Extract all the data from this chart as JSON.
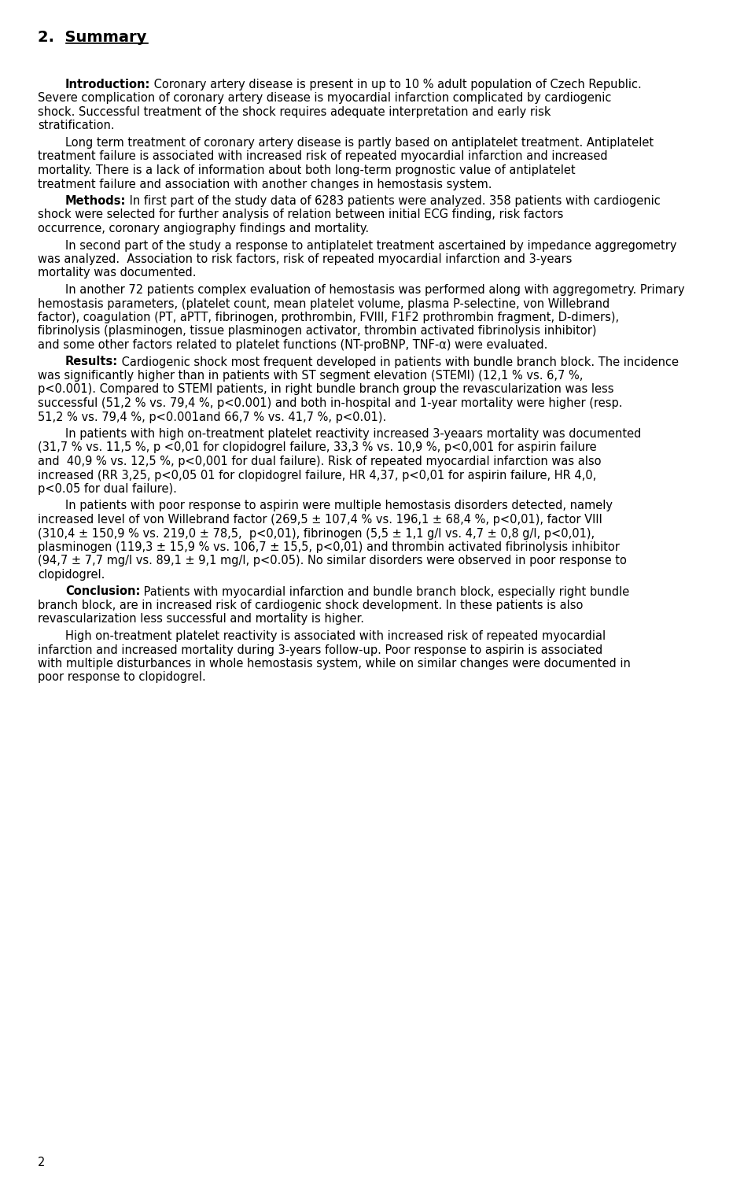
{
  "title": "2.  Summary",
  "page_number": "2",
  "background_color": "#ffffff",
  "text_color": "#000000",
  "font_size": 10.5,
  "title_font_size": 14,
  "paragraphs": [
    {
      "indent": true,
      "bold_prefix": "Introduction:",
      "text": " Coronary artery disease is present in up to 10 % adult population of Czech Republic. Severe complication of coronary artery disease is myocardial infarction complicated by cardiogenic shock. Successful treatment of the shock requires adequate interpretation and early risk stratification."
    },
    {
      "indent": true,
      "bold_prefix": "",
      "text": "Long term treatment of coronary artery disease is partly based on antiplatelet treatment. Antiplatelet treatment failure is associated with increased risk of repeated myocardial infarction and increased mortality. There is a lack of information about both long-term prognostic value of antiplatelet treatment failure and association with another changes in hemostasis system."
    },
    {
      "indent": true,
      "bold_prefix": "Methods:",
      "text": " In first part of the study data of 6283 patients were analyzed. 358 patients with cardiogenic shock were selected for further analysis of relation between initial ECG finding, risk factors occurrence, coronary angiography findings and mortality."
    },
    {
      "indent": true,
      "bold_prefix": "",
      "text": "In second part of the study a response to antiplatelet treatment ascertained by impedance aggregometry was analyzed.  Association to risk factors, risk of repeated myocardial infarction and 3-years mortality was documented."
    },
    {
      "indent": true,
      "bold_prefix": "",
      "text": "In another 72 patients complex evaluation of hemostasis was performed along with aggregometry. Primary hemostasis parameters, (platelet count, mean platelet volume, plasma P-selectine, von Willebrand factor), coagulation (PT, aPTT, fibrinogen, prothrombin, FVIII, F1F2 prothrombin fragment, D-dimers), fibrinolysis (plasminogen, tissue plasminogen activator, thrombin activated fibrinolysis inhibitor) and some other factors related to platelet functions (NT-proBNP, TNF-α) were evaluated."
    },
    {
      "indent": true,
      "bold_prefix": "Results:",
      "text": " Cardiogenic shock most frequent developed in patients with bundle branch block. The incidence was significantly higher than in patients with ST segment elevation (STEMI) (12,1 % vs. 6,7 %, p<0.001). Compared to STEMI patients, in right bundle branch group the revascularization was less successful (51,2 % vs. 79,4 %, p<0.001) and both in-hospital and 1-year mortality were higher (resp. 51,2 % vs. 79,4 %, p<0.001and 66,7 % vs. 41,7 %, p<0.01)."
    },
    {
      "indent": true,
      "bold_prefix": "",
      "text": "In patients with high on-treatment platelet reactivity increased 3-yeaars mortality was documented (31,7 % vs. 11,5 %, p <0,01 for clopidogrel failure, 33,3 % vs. 10,9 %, p<0,001 for aspirin failure and  40,9 % vs. 12,5 %, p<0,001 for dual failure). Risk of repeated myocardial infarction was also increased (RR 3,25, p<0,05 01 for clopidogrel failure, HR 4,37, p<0,01 for aspirin failure, HR 4,0, p<0.05 for dual failure)."
    },
    {
      "indent": true,
      "bold_prefix": "",
      "text": "In patients with poor response to aspirin were multiple hemostasis disorders detected, namely increased level of von Willebrand factor (269,5 ± 107,4 % vs. 196,1 ± 68,4 %, p<0,01), factor VIII (310,4 ± 150,9 % vs. 219,0 ± 78,5,  p<0,01), fibrinogen (5,5 ± 1,1 g/l vs. 4,7 ± 0,8 g/l, p<0,01), plasminogen (119,3 ± 15,9 % vs. 106,7 ± 15,5, p<0,01) and thrombin activated fibrinolysis inhibitor (94,7 ± 7,7 mg/l vs. 89,1 ± 9,1 mg/l, p<0.05). No similar disorders were observed in poor response to clopidogrel."
    },
    {
      "indent": true,
      "bold_prefix": "Conclusion:",
      "text": " Patients with myocardial infarction and bundle branch block, especially right bundle branch block, are in increased risk of cardiogenic shock development. In these patients is also revascularization less successful and mortality is higher."
    },
    {
      "indent": true,
      "bold_prefix": "",
      "text": "High on-treatment platelet reactivity is associated with increased risk of repeated myocardial infarction and increased mortality during 3-years follow-up. Poor response to aspirin is associated with multiple disturbances in whole hemostasis system, while on similar changes were documented in poor response to clopidogrel."
    }
  ]
}
